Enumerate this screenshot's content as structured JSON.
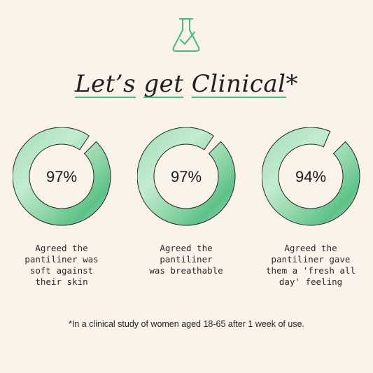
{
  "brand": {
    "logo_icon": "flask-check-icon",
    "accent_color": "#3fbf7f"
  },
  "header": {
    "title_words": [
      "Let’s",
      "get",
      "Clinical"
    ],
    "title_suffix": "*"
  },
  "stats": [
    {
      "value": 97,
      "percent_label": "97%",
      "caption": "Agreed the\npantiliner was\nsoft against\ntheir skin"
    },
    {
      "value": 97,
      "percent_label": "97%",
      "caption": "Agreed the\npantiliner\nwas breathable"
    },
    {
      "value": 94,
      "percent_label": "94%",
      "caption": "Agreed the\npantiliner gave\nthem a 'fresh all\nday' feeling"
    }
  ],
  "footnote": "*In a clinical study of women aged 18-65 after 1 week of use."
}
